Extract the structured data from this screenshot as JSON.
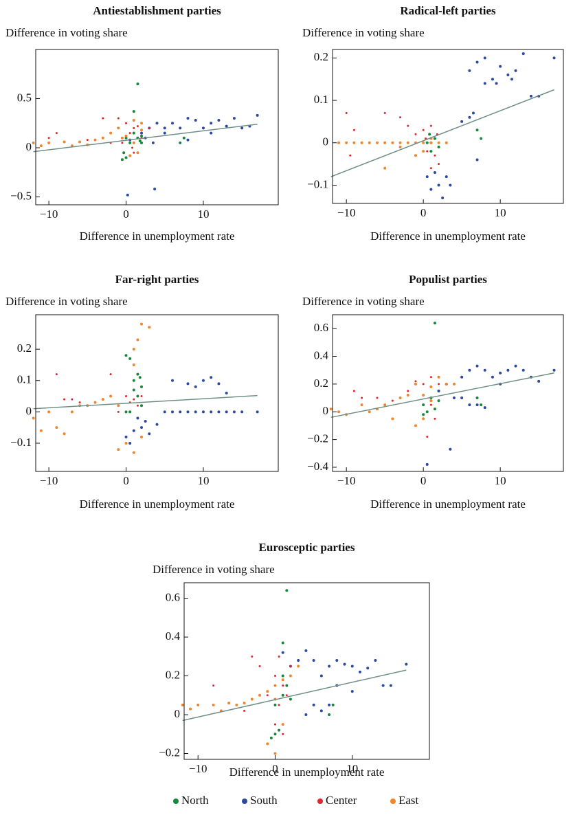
{
  "chart_data": [
    {
      "type": "scatter",
      "title": "Antiestablishment parties",
      "y_label": "Difference in voting share",
      "x_label": "Difference in unemployment rate",
      "xlim": [
        -11.7,
        19.7
      ],
      "ylim": [
        -0.58,
        1.0
      ],
      "xticks": [
        {
          "value": -10,
          "label": "−10"
        },
        0,
        10
      ],
      "yticks": [
        {
          "value": -0.5,
          "label": "−0.5"
        },
        0,
        0.5
      ],
      "series": [
        {
          "name": "North",
          "color": "#17883a",
          "x": [
            1.5,
            1,
            0,
            0.5,
            -0.5,
            0,
            1.5,
            2,
            1.8,
            7,
            7.5,
            1,
            -0.3,
            2
          ],
          "values": [
            0.65,
            0.37,
            0.1,
            0.05,
            -0.12,
            -0.1,
            0.1,
            0.12,
            0.07,
            0.05,
            0.1,
            0.15,
            -0.05,
            0.05
          ]
        },
        {
          "name": "South",
          "color": "#2b4aa0",
          "x": [
            0.2,
            3.7,
            2,
            3,
            4,
            5,
            6,
            7,
            8,
            9,
            10,
            11,
            12,
            13,
            14,
            15,
            16,
            17,
            5,
            8,
            2.5,
            3.5,
            0.5,
            11
          ],
          "values": [
            -0.48,
            -0.42,
            0.15,
            0.2,
            0.25,
            0.2,
            0.25,
            0.2,
            0.3,
            0.28,
            0.2,
            0.25,
            0.28,
            0.22,
            0.3,
            0.2,
            0.22,
            0.33,
            0.15,
            0.08,
            0.1,
            0.05,
            0.08,
            0.15
          ]
        },
        {
          "name": "Center",
          "color": "#e0262c",
          "x": [
            -9,
            -10,
            -3,
            -1,
            0,
            1,
            0.5,
            1.5,
            -0.5,
            0.8,
            2,
            -2,
            1,
            -5,
            3
          ],
          "values": [
            0.15,
            0.1,
            0.3,
            0.3,
            0.25,
            0.2,
            0.15,
            0.22,
            0.05,
            0,
            0.1,
            0.05,
            -0.05,
            0.08,
            0.2
          ]
        },
        {
          "name": "East",
          "color": "#f0862a",
          "x": [
            -12,
            -11,
            -10,
            -8,
            -7,
            -6,
            -5,
            -4,
            -3,
            -2,
            -1,
            0,
            1,
            2,
            1.5,
            0.5,
            -0.5,
            2,
            1
          ],
          "values": [
            0.05,
            0.02,
            0.05,
            0.06,
            0.02,
            0.06,
            0.03,
            0.08,
            0.1,
            0.15,
            0.2,
            0.12,
            0.05,
            0.18,
            -0.05,
            -0.08,
            0.1,
            0.25,
            0.28
          ]
        }
      ],
      "trend": {
        "color": "#6f8f86",
        "x": [
          -12,
          17
        ],
        "values": [
          -0.04,
          0.24
        ]
      }
    },
    {
      "type": "scatter",
      "title": "Radical-left parties",
      "y_label": "Difference in voting share",
      "x_label": "Difference in unemployment rate",
      "xlim": [
        -11.8,
        18.2
      ],
      "ylim": [
        -0.143,
        0.22
      ],
      "xticks": [
        {
          "value": -10,
          "label": "−10"
        },
        0,
        10
      ],
      "yticks": [
        {
          "value": -0.1,
          "label": "−0.1"
        },
        0,
        0.1,
        0.2
      ],
      "series": [
        {
          "name": "North",
          "color": "#17883a",
          "x": [
            1,
            1.5,
            0.5,
            2,
            7,
            7.5,
            1,
            0.8
          ],
          "values": [
            0,
            0.01,
            0,
            -0.01,
            0.03,
            0.01,
            -0.02,
            0.02
          ]
        },
        {
          "name": "South",
          "color": "#2b4aa0",
          "x": [
            6,
            7,
            8,
            9,
            10,
            11,
            12,
            13,
            14,
            15,
            17,
            8,
            9.5,
            11.5,
            6.5,
            7,
            1,
            2,
            3,
            2.5,
            0.5,
            3.5,
            1.5,
            5,
            6
          ],
          "values": [
            0.17,
            0.19,
            0.2,
            0.15,
            0.18,
            0.16,
            0.17,
            0.21,
            0.11,
            0.11,
            0.2,
            0.14,
            0.14,
            0.15,
            0.07,
            -0.04,
            -0.11,
            -0.1,
            -0.08,
            -0.13,
            -0.08,
            -0.1,
            -0.07,
            0.05,
            0.06
          ]
        },
        {
          "name": "Center",
          "color": "#e0262c",
          "x": [
            -10,
            -9,
            -5,
            -3,
            -2,
            -1,
            0,
            1,
            0.5,
            1.5,
            2,
            1,
            -9.5,
            0.3,
            1.8
          ],
          "values": [
            0.07,
            0.03,
            0.07,
            0.06,
            0.04,
            0.02,
            0.03,
            0.04,
            -0.02,
            -0.03,
            -0.05,
            -0.06,
            -0.03,
            0.01,
            0.02
          ]
        },
        {
          "name": "East",
          "color": "#f0862a",
          "x": [
            -11,
            -10,
            -9,
            -8,
            -7,
            -6,
            -5,
            -4,
            -3,
            -2,
            -1,
            0,
            1,
            2,
            3,
            -5,
            -1,
            0,
            1,
            -3
          ],
          "values": [
            0,
            0,
            0,
            0,
            0,
            0,
            0,
            0,
            0,
            0,
            0,
            0,
            0,
            0,
            0,
            -0.06,
            -0.03,
            -0.02,
            0.01,
            -0.01
          ]
        }
      ],
      "trend": {
        "color": "#6f8f86",
        "x": [
          -12,
          17
        ],
        "values": [
          -0.08,
          0.125
        ]
      }
    },
    {
      "type": "scatter",
      "title": "Far-right parties",
      "y_label": "Difference in voting share",
      "x_label": "Difference in unemployment rate",
      "xlim": [
        -11.7,
        19.7
      ],
      "ylim": [
        -0.19,
        0.31
      ],
      "xticks": [
        {
          "value": -10,
          "label": "−10"
        },
        0,
        10
      ],
      "yticks": [
        {
          "value": -0.1,
          "label": "−0.1"
        },
        0,
        0.1,
        0.2
      ],
      "series": [
        {
          "name": "North",
          "color": "#17883a",
          "x": [
            0,
            0.5,
            1,
            1.5,
            2,
            1.5,
            1,
            0,
            0.5,
            2,
            1.8
          ],
          "values": [
            0.18,
            0.17,
            0.1,
            0.12,
            0.08,
            0.05,
            0.07,
            0,
            0,
            0.02,
            0.11
          ]
        },
        {
          "name": "South",
          "color": "#2b4aa0",
          "x": [
            6,
            8,
            9,
            10,
            11,
            12,
            13,
            5,
            6,
            7,
            8,
            9,
            10,
            11,
            12,
            13,
            14,
            15,
            17,
            0,
            1,
            2,
            3,
            0.5,
            1.5,
            2.5,
            4
          ],
          "values": [
            0.1,
            0.09,
            0.08,
            0.1,
            0.11,
            0.09,
            0.06,
            0,
            0,
            0,
            0,
            0,
            0,
            0,
            0,
            0,
            0,
            0,
            0,
            -0.08,
            -0.06,
            -0.05,
            -0.07,
            -0.1,
            -0.02,
            -0.03,
            -0.04
          ]
        },
        {
          "name": "Center",
          "color": "#e0262c",
          "x": [
            -9,
            -8,
            -7,
            -2,
            0,
            1,
            0.5,
            1.5,
            -1,
            2,
            -6
          ],
          "values": [
            0.12,
            0.04,
            0.04,
            0.12,
            0.05,
            0.04,
            0.03,
            0.02,
            0,
            0.05,
            0.03
          ]
        },
        {
          "name": "East",
          "color": "#f0862a",
          "x": [
            -12,
            -11,
            -10,
            -9,
            -8,
            -7,
            -6,
            -5,
            -4,
            -3,
            -2,
            -1,
            -1,
            0,
            1,
            1,
            1.5,
            2,
            3,
            1,
            2
          ],
          "values": [
            -0.02,
            -0.06,
            0,
            -0.05,
            -0.07,
            0,
            0.02,
            0.02,
            0.03,
            0.04,
            0.05,
            0.02,
            -0.12,
            -0.1,
            -0.13,
            0.2,
            0.23,
            0.28,
            0.27,
            0.15,
            -0.08
          ]
        }
      ],
      "trend": {
        "color": "#6f8f86",
        "x": [
          -12,
          17
        ],
        "values": [
          0.01,
          0.052
        ]
      }
    },
    {
      "type": "scatter",
      "title": "Populist parties",
      "y_label": "Difference in voting share",
      "x_label": "Difference in unemployment rate",
      "xlim": [
        -11.8,
        18.2
      ],
      "ylim": [
        -0.43,
        0.7
      ],
      "xticks": [
        {
          "value": -10,
          "label": "−10"
        },
        0,
        10
      ],
      "yticks": [
        {
          "value": -0.4,
          "label": "−0.4"
        },
        {
          "value": -0.2,
          "label": "−0.2"
        },
        0,
        0.2,
        0.4,
        0.6
      ],
      "series": [
        {
          "name": "North",
          "color": "#17883a",
          "x": [
            1.5,
            0,
            1,
            2,
            0.5,
            1.5,
            7,
            7.5,
            0,
            2
          ],
          "values": [
            0.64,
            0.05,
            0.1,
            0.08,
            0,
            0.02,
            0.1,
            0.05,
            -0.02,
            0.15
          ]
        },
        {
          "name": "South",
          "color": "#2b4aa0",
          "x": [
            0.5,
            3.5,
            5,
            6,
            7,
            8,
            9,
            10,
            11,
            12,
            13,
            14,
            15,
            17,
            5,
            6,
            7,
            8,
            3,
            2,
            4,
            10
          ],
          "values": [
            -0.38,
            -0.27,
            0.25,
            0.3,
            0.33,
            0.3,
            0.25,
            0.28,
            0.3,
            0.33,
            0.3,
            0.25,
            0.22,
            0.3,
            0.1,
            0.05,
            0.05,
            0.03,
            0.2,
            0.15,
            0.1,
            0.2
          ]
        },
        {
          "name": "Center",
          "color": "#e0262c",
          "x": [
            -9,
            -8,
            -6,
            -4,
            -3,
            -2,
            -1,
            0,
            1,
            2,
            1,
            1.5,
            0.5
          ],
          "values": [
            0.15,
            0.1,
            0.1,
            0.08,
            0.1,
            0.15,
            0.22,
            0.2,
            0.25,
            0.2,
            0.05,
            -0.05,
            -0.18
          ]
        },
        {
          "name": "East",
          "color": "#f0862a",
          "x": [
            -12,
            -11,
            -10,
            -8,
            -7,
            -6,
            -5,
            -4,
            -3,
            -2,
            -1,
            0,
            1,
            2,
            3,
            4,
            -1,
            0,
            1
          ],
          "values": [
            0.02,
            0,
            -0.02,
            0.05,
            0,
            0.02,
            0.05,
            -0.05,
            0.1,
            0.12,
            0.2,
            0.12,
            0.18,
            0.25,
            0.2,
            0.2,
            -0.1,
            -0.05,
            0.08
          ]
        }
      ],
      "trend": {
        "color": "#6f8f86",
        "x": [
          -12,
          17
        ],
        "values": [
          -0.04,
          0.28
        ]
      }
    },
    {
      "type": "scatter",
      "title": "Eurosceptic parties",
      "y_label": "Difference in voting share",
      "x_label": "Difference in unemployment rate",
      "xlim": [
        -11.8,
        20
      ],
      "ylim": [
        -0.23,
        0.68
      ],
      "xticks": [
        {
          "value": -10,
          "label": "−10"
        },
        0,
        10
      ],
      "yticks": [
        {
          "value": -0.2,
          "label": "−0.2"
        },
        0,
        0.2,
        0.4,
        0.6
      ],
      "series": [
        {
          "name": "North",
          "color": "#17883a",
          "x": [
            1.5,
            1,
            0,
            0.5,
            -0.5,
            1,
            2,
            1.5,
            7,
            7.5,
            0,
            1
          ],
          "values": [
            0.64,
            0.37,
            -0.1,
            -0.08,
            -0.12,
            0.1,
            0.08,
            0.15,
            0,
            0.05,
            0.05,
            0.2
          ]
        },
        {
          "name": "South",
          "color": "#2b4aa0",
          "x": [
            1,
            2,
            3,
            4,
            5,
            6,
            7,
            8,
            9,
            10,
            11,
            12,
            13,
            14,
            15,
            17,
            5,
            6,
            7,
            4,
            8,
            10
          ],
          "values": [
            0.32,
            0.25,
            0.28,
            0.33,
            0.28,
            0.2,
            0.25,
            0.28,
            0.26,
            0.25,
            0.22,
            0.24,
            0.28,
            0.15,
            0.15,
            0.26,
            0.05,
            0.02,
            0.05,
            0,
            0.15,
            0.12
          ]
        },
        {
          "name": "Center",
          "color": "#e0262c",
          "x": [
            -8,
            -3,
            -2,
            -1,
            0,
            1,
            0.5,
            1.5,
            0,
            1,
            -4,
            2,
            0.5
          ],
          "values": [
            0.15,
            0.3,
            0.25,
            0.1,
            0.2,
            0.15,
            0.05,
            0.1,
            -0.05,
            -0.1,
            0.02,
            0.25,
            0.3
          ]
        },
        {
          "name": "East",
          "color": "#f0862a",
          "x": [
            -12,
            -11,
            -10,
            -8,
            -7,
            -6,
            -5,
            -4,
            -3,
            -2,
            -1,
            0,
            1,
            2,
            3,
            -1,
            0,
            1,
            0
          ],
          "values": [
            0.05,
            0.03,
            0.05,
            0.05,
            0.02,
            0.06,
            0.05,
            0.06,
            0.08,
            0.1,
            0.12,
            0.15,
            0.18,
            0.2,
            0.25,
            -0.15,
            -0.2,
            -0.05,
            0.08
          ]
        }
      ],
      "trend": {
        "color": "#6f8f86",
        "x": [
          -12,
          17
        ],
        "values": [
          -0.03,
          0.23
        ]
      }
    }
  ]
}
